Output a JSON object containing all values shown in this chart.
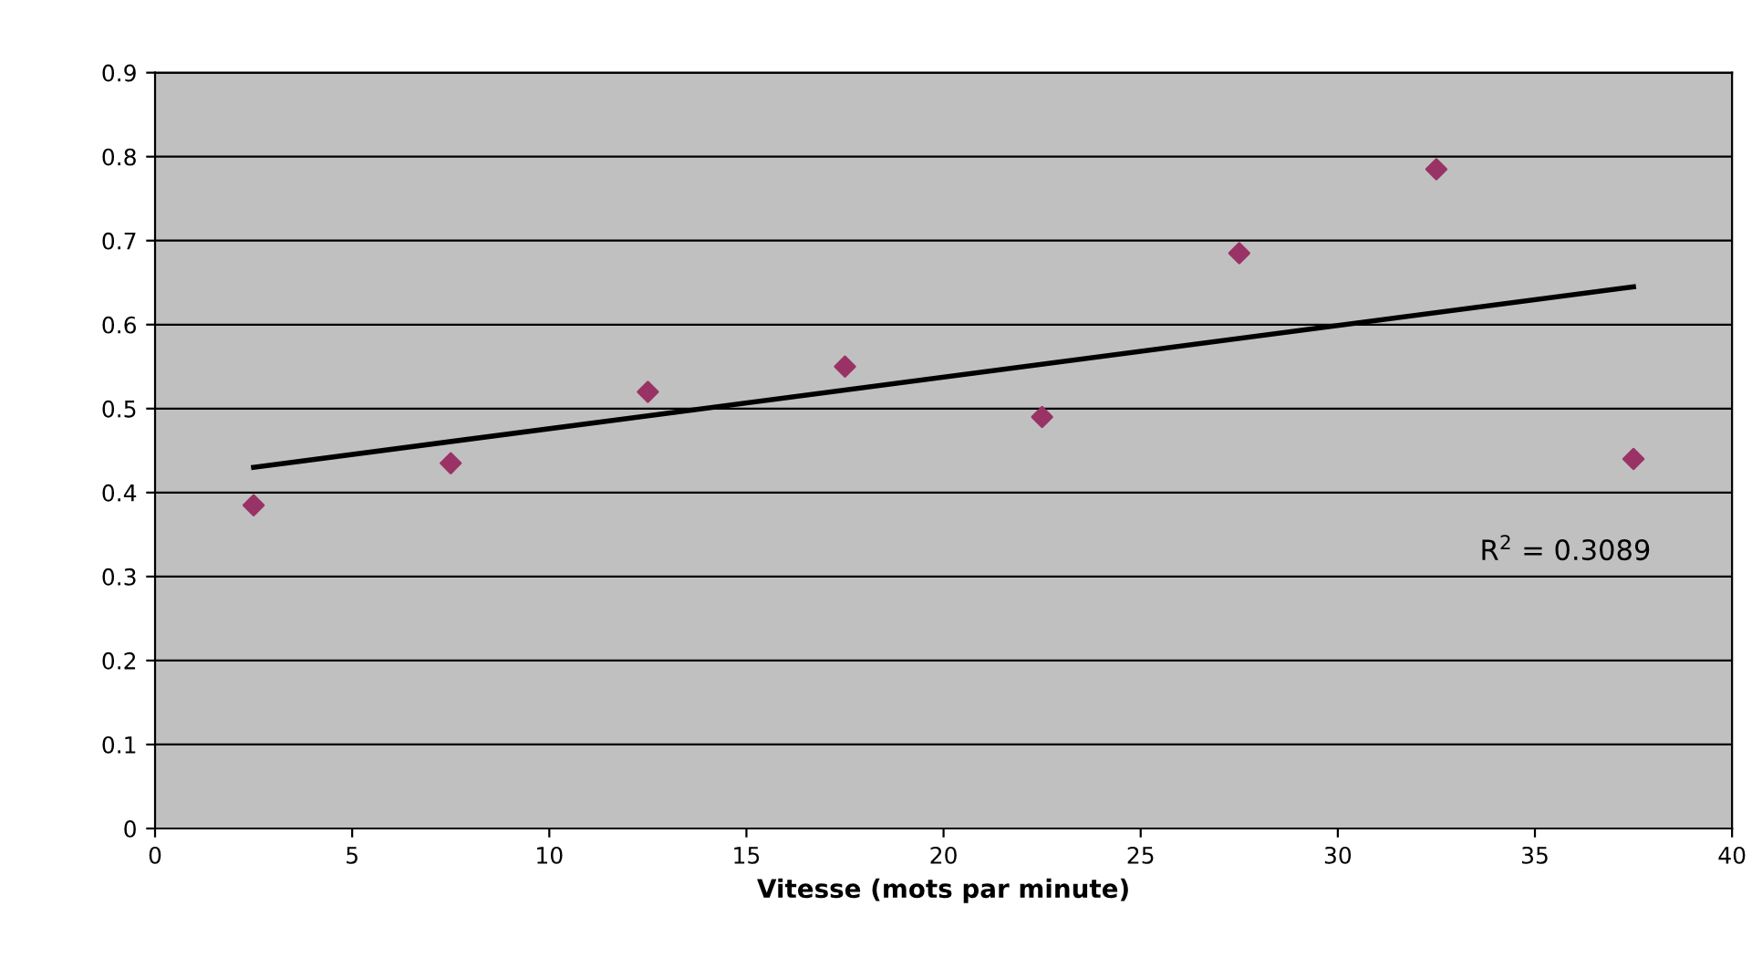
{
  "chart_data": {
    "type": "scatter",
    "xlabel": "Vitesse (mots par minute)",
    "series": [
      {
        "color": "#993366",
        "marker": "diamond",
        "x": [
          2.5,
          7.5,
          12.5,
          17.5,
          22.5,
          27.5,
          32.5,
          37.5
        ],
        "values": [
          0.385,
          0.435,
          0.52,
          0.55,
          0.49,
          0.685,
          0.785,
          0.44
        ]
      },
      {
        "type": "line",
        "color": "#000000",
        "marker": "none",
        "x": [
          2.5,
          37.5
        ],
        "values": [
          0.43,
          0.645
        ]
      }
    ],
    "annotations": [
      "R$^{2}$ = 0.3089"
    ],
    "xlim": [
      0,
      40
    ],
    "xticks": [
      0,
      5,
      10,
      15,
      20,
      25,
      30,
      35,
      40
    ],
    "ylim": [
      0,
      0.9
    ],
    "yticks": [
      0,
      0.1,
      0.2,
      0.3,
      0.4,
      0.5,
      0.6,
      0.7,
      0.8,
      0.9
    ],
    "grid": "y",
    "legend": false
  }
}
